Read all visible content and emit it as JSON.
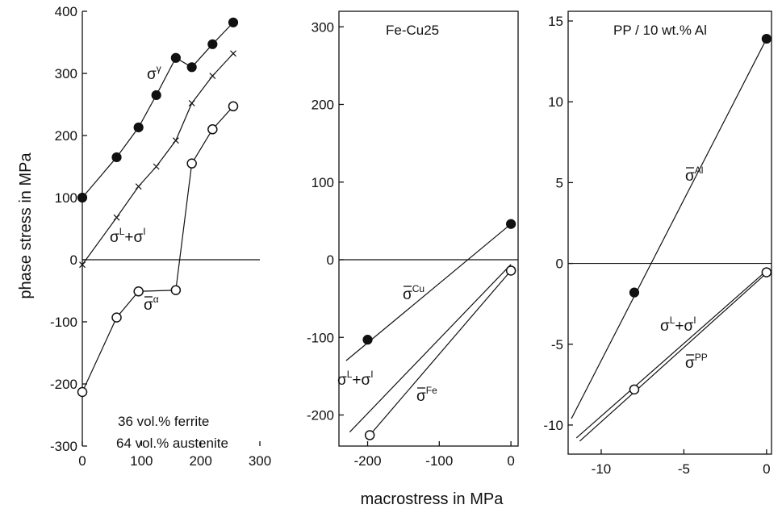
{
  "figure": {
    "ylabel": "phase stress in MPa",
    "xlabel": "macrostress in MPa"
  },
  "chart_data": [
    {
      "type": "line",
      "title": "",
      "xlim": [
        0,
        300
      ],
      "ylim": [
        -300,
        400
      ],
      "xticks": [
        0,
        100,
        200,
        300
      ],
      "yticks": [
        -300,
        -200,
        -100,
        0,
        100,
        200,
        300,
        400
      ],
      "annotations": [
        "36 vol.% ferrite",
        "64 vol.% austenite"
      ],
      "series": [
        {
          "name": "σ^γ",
          "marker": "filled",
          "x": [
            0,
            58,
            95,
            125,
            158,
            185,
            220,
            255
          ],
          "y": [
            100,
            165,
            213,
            265,
            325,
            310,
            347,
            382
          ]
        },
        {
          "name": "σ^L+σ^I",
          "marker": "x",
          "x": [
            0,
            58,
            95,
            125,
            158,
            185,
            220,
            255
          ],
          "y": [
            -8,
            68,
            118,
            150,
            192,
            252,
            296,
            332
          ]
        },
        {
          "name": "σ̄^α",
          "marker": "open",
          "x": [
            0,
            58,
            95,
            158,
            185,
            220,
            255
          ],
          "y": [
            -213,
            -93,
            -51,
            -49,
            155,
            210,
            247
          ]
        }
      ]
    },
    {
      "type": "line",
      "title": "Fe-Cu25",
      "xlim": [
        -240,
        10
      ],
      "ylim": [
        -240,
        320
      ],
      "xticks": [
        -200,
        -100,
        0
      ],
      "yticks": [
        -200,
        -100,
        0,
        100,
        200,
        300
      ],
      "series": [
        {
          "name": "σ̄^Cu",
          "marker": "filled",
          "points": [
            [
              -200,
              -103
            ],
            [
              0,
              46
            ]
          ],
          "line": {
            "x": [
              -230,
              0
            ],
            "y": [
              -130,
              46
            ]
          }
        },
        {
          "name": "σ^L+σ^I",
          "marker": "none",
          "line": {
            "x": [
              -225,
              0
            ],
            "y": [
              -222,
              -6
            ]
          }
        },
        {
          "name": "σ̄^Fe",
          "marker": "open",
          "points": [
            [
              -197,
              -226
            ],
            [
              0,
              -14
            ]
          ],
          "line": {
            "x": [
              -197,
              0
            ],
            "y": [
              -226,
              -14
            ]
          }
        }
      ]
    },
    {
      "type": "line",
      "title": "PP / 10 wt.% Al",
      "xlim": [
        -12,
        0.3
      ],
      "ylim": [
        -11.8,
        15.6
      ],
      "xticks": [
        -10,
        -5,
        0
      ],
      "yticks": [
        -10,
        -5,
        0,
        5,
        10,
        15
      ],
      "series": [
        {
          "name": "σ̄^Al",
          "marker": "filled",
          "points": [
            [
              -8,
              -1.8
            ],
            [
              0,
              13.9
            ]
          ],
          "line": {
            "x": [
              -11.8,
              0
            ],
            "y": [
              -9.6,
              13.9
            ]
          }
        },
        {
          "name": "σ^L+σ^I",
          "marker": "none",
          "line": {
            "x": [
              -11.5,
              0
            ],
            "y": [
              -10.8,
              -0.45
            ]
          }
        },
        {
          "name": "σ̄^PP",
          "marker": "open",
          "points": [
            [
              -8,
              -7.8
            ],
            [
              0,
              -0.55
            ]
          ],
          "line": {
            "x": [
              -11.3,
              0
            ],
            "y": [
              -11.0,
              -0.6
            ]
          }
        }
      ]
    }
  ]
}
